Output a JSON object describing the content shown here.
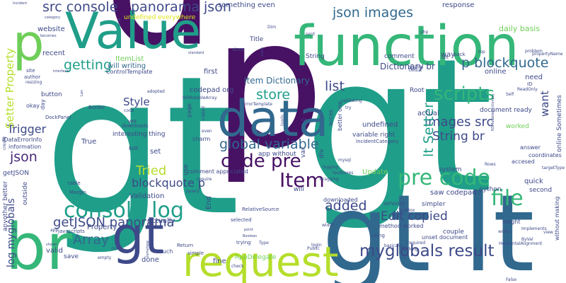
{
  "palette": {
    "dark_purple": "#471164",
    "purple": "#482878",
    "indigo": "#3e4989",
    "blue": "#31688e",
    "teal_blue": "#26828e",
    "teal": "#1f9e89",
    "green": "#35b779",
    "light_green": "#6ece58",
    "lime": "#b5de2b",
    "yellow": "#dde318"
  },
  "words": [
    {
      "text": "gt",
      "color": "#1f9e89"
    },
    {
      "text": "gt",
      "color": "#1f9e89"
    },
    {
      "text": "p",
      "color": "#471164"
    },
    {
      "text": "p",
      "color": "#471164"
    },
    {
      "text": "gt",
      "color": "#31688e"
    },
    {
      "text": "lt",
      "color": "#31688e"
    },
    {
      "text": "function",
      "color": "#35b779"
    },
    {
      "text": "Value",
      "color": "#1f9e89"
    },
    {
      "text": "data",
      "color": "#31688e"
    },
    {
      "text": "br",
      "color": "#35b779"
    },
    {
      "text": "gt",
      "color": "#3e4989"
    },
    {
      "text": "request",
      "color": "#b5de2b"
    },
    {
      "text": "p",
      "color": "#6ece58"
    },
    {
      "text": "json images",
      "color": "#31688e"
    },
    {
      "text": "p blockquote",
      "color": "#31688e"
    },
    {
      "text": "console log",
      "color": "#1f9e89"
    },
    {
      "text": "code pre",
      "color": "#471164"
    },
    {
      "text": "pre code",
      "color": "#35b779"
    },
    {
      "text": "Item",
      "color": "#471164"
    },
    {
      "text": "file",
      "color": "#35b779"
    },
    {
      "text": "scripts",
      "color": "#35b779"
    },
    {
      "text": "global variable",
      "color": "#31688e"
    },
    {
      "text": "myglobals result",
      "color": "#3e4989"
    },
    {
      "text": "src console",
      "color": "#3e4989"
    },
    {
      "text": "panorama json",
      "color": "#3e4989"
    },
    {
      "text": "getJSON panorama",
      "color": "#3e4989"
    },
    {
      "text": "Array",
      "color": "#31688e"
    },
    {
      "text": "list",
      "color": "#3e4989"
    },
    {
      "text": "getting",
      "color": "#1f9e89"
    },
    {
      "text": "store",
      "color": "#1f9e89"
    },
    {
      "text": "images src",
      "color": "#3e4989"
    },
    {
      "text": "String br",
      "color": "#3e4989"
    },
    {
      "text": "added",
      "color": "#3e4989"
    },
    {
      "text": "Edit copied",
      "color": "#3e4989"
    },
    {
      "text": "lt Setter",
      "color": "#1f9e89"
    },
    {
      "text": "Tried",
      "color": "#b5de2b"
    },
    {
      "text": "json",
      "color": "#482878"
    },
    {
      "text": "Trigger",
      "color": "#3e4989"
    },
    {
      "text": "blockquote p",
      "color": "#3e4989"
    },
    {
      "text": "Style",
      "color": "#3e4989"
    },
    {
      "text": "Setter Property",
      "color": "#b5de2b"
    },
    {
      "text": "want",
      "color": "#3e4989"
    },
    {
      "text": "log myglobals",
      "color": "#3e4989"
    },
    {
      "text": "Item Dictionary",
      "color": "#31688e"
    },
    {
      "text": "Dictionary br",
      "color": "#3e4989"
    },
    {
      "text": "something even",
      "color": "#3e4989"
    },
    {
      "text": "undefined everywhere",
      "color": "#dde318"
    },
    {
      "text": "website",
      "color": "#3e4989"
    },
    {
      "text": "recent",
      "color": "#3e4989"
    },
    {
      "text": "ItemList",
      "color": "#6ece58"
    },
    {
      "text": "will writing",
      "color": "#31688e"
    },
    {
      "text": "ControlTemplate",
      "color": "#3e4989"
    },
    {
      "text": "response",
      "color": "#3e4989"
    },
    {
      "text": "daily basis",
      "color": "#6ece58"
    },
    {
      "text": "Title",
      "color": "#3e4989"
    },
    {
      "text": "sizes",
      "color": "#3e4989"
    },
    {
      "text": "String",
      "color": "#3e4989"
    },
    {
      "text": "comment",
      "color": "#3e4989"
    },
    {
      "text": "way",
      "color": "#3e4989"
    },
    {
      "text": "online",
      "color": "#3e4989"
    },
    {
      "text": "need",
      "color": "#3e4989"
    },
    {
      "text": "first",
      "color": "#3e4989"
    },
    {
      "text": "codepad org",
      "color": "#3e4989"
    },
    {
      "text": "Root",
      "color": "#3e4989"
    },
    {
      "text": "actual",
      "color": "#3e4989"
    },
    {
      "text": "document ready",
      "color": "#3e4989"
    },
    {
      "text": "worked",
      "color": "#6ece58"
    },
    {
      "text": "online Sometimes",
      "color": "#3e4989"
    },
    {
      "text": "undefined",
      "color": "#3e4989"
    },
    {
      "text": "variable right",
      "color": "#3e4989"
    },
    {
      "text": "IncidentCategory",
      "color": "#3e4989"
    },
    {
      "text": "answer",
      "color": "#3e4989"
    },
    {
      "text": "coordinates",
      "color": "#3e4989"
    },
    {
      "text": "accesed",
      "color": "#3e4989"
    },
    {
      "text": "button",
      "color": "#3e4989"
    },
    {
      "text": "okay",
      "color": "#3e4989"
    },
    {
      "text": "day",
      "color": "#3e4989"
    },
    {
      "text": "Border",
      "color": "#3e4989"
    },
    {
      "text": "interesting thing",
      "color": "#3e4989"
    },
    {
      "text": "True",
      "color": "#3e4989"
    },
    {
      "text": "charm",
      "color": "#3e4989"
    },
    {
      "text": "set",
      "color": "#3e4989"
    },
    {
      "text": "app without",
      "color": "#3e4989"
    },
    {
      "text": "comment appriciated",
      "color": "#3e4989"
    },
    {
      "text": "Update",
      "color": "#6ece58"
    },
    {
      "text": "system",
      "color": "#3e4989"
    },
    {
      "text": "saw codepad",
      "color": "#3e4989"
    },
    {
      "text": "quick",
      "color": "#3e4989"
    },
    {
      "text": "second",
      "color": "#3e4989"
    },
    {
      "text": "python",
      "color": "#3e4989"
    },
    {
      "text": "Validation",
      "color": "#3e4989"
    },
    {
      "text": "End",
      "color": "#3e4989"
    },
    {
      "text": "downloaded",
      "color": "#3e4989"
    },
    {
      "text": "simpler",
      "color": "#3e4989"
    },
    {
      "text": "method worked",
      "color": "#3e4989"
    },
    {
      "text": "couple",
      "color": "#3e4989"
    },
    {
      "text": "unset document",
      "color": "#3e4989"
    },
    {
      "text": "height",
      "color": "#3e4989"
    },
    {
      "text": "without making",
      "color": "#3e4989"
    },
    {
      "text": "actually",
      "color": "#3e4989"
    },
    {
      "text": "Property",
      "color": "#3e4989"
    },
    {
      "text": "valid",
      "color": "#3e4989"
    },
    {
      "text": "done",
      "color": "#3e4989"
    },
    {
      "text": "fine",
      "color": "#3e4989"
    },
    {
      "text": "save",
      "color": "#3e4989"
    },
    {
      "text": "AppDelegate",
      "color": "#6ece58"
    },
    {
      "text": "anyother better",
      "color": "#3e4989"
    },
    {
      "text": "getJSON",
      "color": "#3e4989"
    },
    {
      "text": "outside",
      "color": "#3e4989"
    },
    {
      "text": "IDataErrorInfo",
      "color": "#3e4989"
    },
    {
      "text": "information",
      "color": "#3e4989"
    },
    {
      "text": "DockPanel",
      "color": "#3e4989"
    },
    {
      "text": "author",
      "color": "#3e4989"
    },
    {
      "text": "resizing",
      "color": "#3e4989"
    },
    {
      "text": "site",
      "color": "#3e4989"
    },
    {
      "text": "javascripts",
      "color": "#3e4989"
    },
    {
      "text": "app",
      "color": "#3e4989"
    },
    {
      "text": "table",
      "color": "#3e4989"
    },
    {
      "text": "Margin",
      "color": "#3e4989"
    },
    {
      "text": "create",
      "color": "#3e4989"
    },
    {
      "text": "much",
      "color": "#3e4989"
    },
    {
      "text": "simple",
      "color": "#3e4989"
    },
    {
      "text": "Return",
      "color": "#3e4989"
    },
    {
      "text": "RelativeSource",
      "color": "#3e4989"
    },
    {
      "text": "selected",
      "color": "#3e4989"
    },
    {
      "text": "trying",
      "color": "#3e4989"
    },
    {
      "text": "Type",
      "color": "#3e4989"
    },
    {
      "text": "width",
      "color": "#3e4989"
    },
    {
      "text": "login",
      "color": "#3e4989"
    },
    {
      "text": "check",
      "color": "#3e4989"
    },
    {
      "text": "using",
      "color": "#3e4989"
    },
    {
      "text": "Public",
      "color": "#3e4989"
    },
    {
      "text": "setValue",
      "color": "#3e4989"
    },
    {
      "text": "TextBox",
      "color": "#3e4989"
    },
    {
      "text": "required",
      "color": "#3e4989"
    },
    {
      "text": "basically",
      "color": "#3e4989"
    },
    {
      "text": "Nothing",
      "color": "#3e4989"
    },
    {
      "text": "HorizontalAlignment",
      "color": "#3e4989"
    },
    {
      "text": "ByVal",
      "color": "#3e4989"
    },
    {
      "text": "view",
      "color": "#3e4989"
    },
    {
      "text": "works",
      "color": "#3e4989"
    },
    {
      "text": "Implements",
      "color": "#3e4989"
    },
    {
      "text": "Rows",
      "color": "#3e4989"
    },
    {
      "text": "targetType",
      "color": "#3e4989"
    },
    {
      "text": "ReadOnly",
      "color": "#3e4989"
    },
    {
      "text": "ID",
      "color": "#3e4989"
    },
    {
      "text": "Self",
      "color": "#3e4989"
    },
    {
      "text": "propertyName",
      "color": "#3e4989"
    },
    {
      "text": "problem",
      "color": "#3e4989"
    },
    {
      "text": "back",
      "color": "#3e4989"
    },
    {
      "text": "left",
      "color": "#3e4989"
    },
    {
      "text": "top",
      "color": "#3e4989"
    },
    {
      "text": "php",
      "color": "#3e4989"
    },
    {
      "text": "sent",
      "color": "#3e4989"
    },
    {
      "text": "disable",
      "color": "#3e4989"
    },
    {
      "text": "Default",
      "color": "#3e4989"
    },
    {
      "text": "appears",
      "color": "#3e4989"
    },
    {
      "text": "better one",
      "color": "#3e4989"
    },
    {
      "text": "acces",
      "color": "#3e4989"
    },
    {
      "text": "try",
      "color": "#3e4989"
    },
    {
      "text": "validating",
      "color": "#3e4989"
    },
    {
      "text": "via",
      "color": "#3e4989"
    },
    {
      "text": "loads",
      "color": "#3e4989"
    },
    {
      "text": "var",
      "color": "#3e4989"
    },
    {
      "text": "div",
      "color": "#3e4989"
    },
    {
      "text": "mysql",
      "color": "#3e4989"
    },
    {
      "text": "logging",
      "color": "#3e4989"
    },
    {
      "text": "textboxes",
      "color": "#3e4989"
    },
    {
      "text": "dragging",
      "color": "#3e4989"
    },
    {
      "text": "require",
      "color": "#3e4989"
    },
    {
      "text": "jquery",
      "color": "#3e4989"
    },
    {
      "text": "will",
      "color": "#3e4989"
    },
    {
      "text": "use",
      "color": "#3e4989"
    },
    {
      "text": "page",
      "color": "#3e4989"
    },
    {
      "text": "copied",
      "color": "#3e4989"
    },
    {
      "text": "even",
      "color": "#3e4989"
    },
    {
      "text": "WPF",
      "color": "#3e4989"
    },
    {
      "text": "Edit",
      "color": "#3e4989"
    },
    {
      "text": "downloads",
      "color": "#3e4989"
    },
    {
      "text": "code",
      "color": "#3e4989"
    },
    {
      "text": "adopted",
      "color": "#3e4989"
    },
    {
      "text": "NSMutableArray",
      "color": "#3e4989"
    },
    {
      "text": "ErrorTemplate",
      "color": "#3e4989"
    },
    {
      "text": "Dim",
      "color": "#3e4989"
    },
    {
      "text": "interface",
      "color": "#3e4989"
    },
    {
      "text": "standard",
      "color": "#3e4989"
    },
    {
      "text": "static",
      "color": "#3e4989"
    },
    {
      "text": "Incident",
      "color": "#3e4989"
    },
    {
      "text": "category",
      "color": "#3e4989"
    },
    {
      "text": "becomes",
      "color": "#3e4989"
    },
    {
      "text": "bind",
      "color": "#3e4989"
    },
    {
      "text": "Lan",
      "color": "#3e4989"
    },
    {
      "text": "Boolean",
      "color": "#3e4989"
    },
    {
      "text": "point",
      "color": "#3e4989"
    },
    {
      "text": "somehow",
      "color": "#3e4989"
    },
    {
      "text": "one",
      "color": "#3e4989"
    },
    {
      "text": "empty",
      "color": "#3e4989"
    },
    {
      "text": "shown",
      "color": "#3e4989"
    },
    {
      "text": "False",
      "color": "#3e4989"
    },
    {
      "text": "NSMutableDictionary",
      "color": "#3e4989"
    }
  ]
}
